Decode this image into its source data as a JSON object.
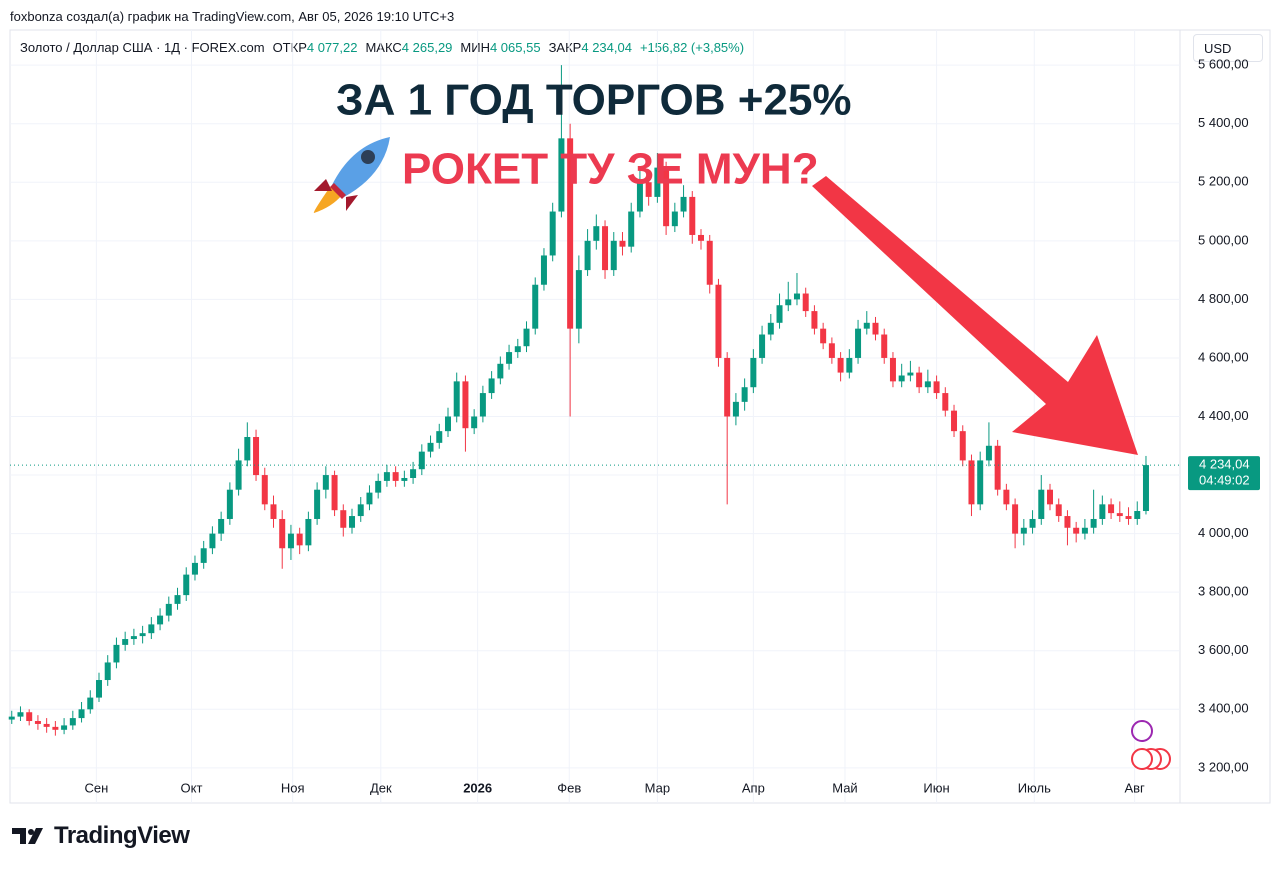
{
  "header": {
    "author_line": "foxbonza создал(а) график на TradingView.com, Авг 05, 2026 19:10 UTC+3",
    "symbol": "Золото / Доллар США · 1Д · FOREX.com",
    "ohlc_labels": [
      {
        "label": "ОТКР",
        "value": "4 077,22"
      },
      {
        "label": "МАКС",
        "value": "4 265,29"
      },
      {
        "label": "МИН",
        "value": "4 065,55"
      },
      {
        "label": "ЗАКР",
        "value": "4 234,04"
      }
    ],
    "change": "+156,82 (+3,85%)",
    "currency": "USD"
  },
  "footer": {
    "brand": "TradingView"
  },
  "chart_data": {
    "type": "candlestick",
    "title": "ЗА 1 ГОД ТОРГОВ +25%",
    "subtitle": "РОКЕТ ТУ ЗЕ МУН?",
    "up_color": "#089981",
    "down_color": "#f23645",
    "xlim": [
      -0.2,
      133.9
    ],
    "xticks": [
      {
        "value": 9.7,
        "label": "Сен"
      },
      {
        "value": 20.6,
        "label": "Окт"
      },
      {
        "value": 32.2,
        "label": "Ноя"
      },
      {
        "value": 42.3,
        "label": "Дек"
      },
      {
        "value": 53.4,
        "label": "2026"
      },
      {
        "value": 63.9,
        "label": "Фев"
      },
      {
        "value": 74,
        "label": "Мар"
      },
      {
        "value": 85,
        "label": "Апр"
      },
      {
        "value": 95.5,
        "label": "Май"
      },
      {
        "value": 106,
        "label": "Июн"
      },
      {
        "value": 117.2,
        "label": "Июль"
      },
      {
        "value": 128.7,
        "label": "Авг"
      }
    ],
    "ylim": [
      3080,
      5720
    ],
    "yticks": [
      {
        "value": 3200,
        "label": "3 200,00"
      },
      {
        "value": 3400,
        "label": "3 400,00"
      },
      {
        "value": 3600,
        "label": "3 600,00"
      },
      {
        "value": 3800,
        "label": "3 800,00"
      },
      {
        "value": 4000,
        "label": "4 000,00"
      },
      {
        "value": 4200,
        "label": "4 200,00"
      },
      {
        "value": 4400,
        "label": "4 400,00"
      },
      {
        "value": 4600,
        "label": "4 600,00"
      },
      {
        "value": 4800,
        "label": "4 800,00"
      },
      {
        "value": 5000,
        "label": "5 000,00"
      },
      {
        "value": 5200,
        "label": "5 200,00"
      },
      {
        "value": 5400,
        "label": "5 400,00"
      },
      {
        "value": 5600,
        "label": "5 600,00"
      }
    ],
    "grid": true,
    "last_price": {
      "value": 4234.04,
      "label": "4 234,04",
      "countdown": "04:49:02"
    },
    "ohlc": [
      [
        3365,
        3395,
        3350,
        3375
      ],
      [
        3375,
        3410,
        3360,
        3390
      ],
      [
        3390,
        3400,
        3345,
        3360
      ],
      [
        3360,
        3380,
        3330,
        3350
      ],
      [
        3350,
        3370,
        3320,
        3340
      ],
      [
        3340,
        3360,
        3310,
        3330
      ],
      [
        3330,
        3370,
        3315,
        3345
      ],
      [
        3345,
        3395,
        3330,
        3370
      ],
      [
        3370,
        3425,
        3355,
        3400
      ],
      [
        3400,
        3465,
        3385,
        3440
      ],
      [
        3440,
        3525,
        3425,
        3500
      ],
      [
        3500,
        3585,
        3480,
        3560
      ],
      [
        3560,
        3645,
        3540,
        3620
      ],
      [
        3620,
        3665,
        3600,
        3640
      ],
      [
        3640,
        3675,
        3620,
        3650
      ],
      [
        3650,
        3685,
        3625,
        3660
      ],
      [
        3660,
        3715,
        3640,
        3690
      ],
      [
        3690,
        3745,
        3670,
        3720
      ],
      [
        3720,
        3785,
        3700,
        3760
      ],
      [
        3760,
        3815,
        3740,
        3790
      ],
      [
        3790,
        3885,
        3770,
        3860
      ],
      [
        3860,
        3925,
        3840,
        3900
      ],
      [
        3900,
        3975,
        3880,
        3950
      ],
      [
        3950,
        4025,
        3930,
        4000
      ],
      [
        4000,
        4075,
        3975,
        4050
      ],
      [
        4050,
        4175,
        4030,
        4150
      ],
      [
        4150,
        4290,
        4130,
        4250
      ],
      [
        4250,
        4380,
        4230,
        4330
      ],
      [
        4330,
        4355,
        4180,
        4200
      ],
      [
        4200,
        4225,
        4080,
        4100
      ],
      [
        4100,
        4130,
        4020,
        4050
      ],
      [
        4050,
        4080,
        3880,
        3950
      ],
      [
        3950,
        4030,
        3910,
        4000
      ],
      [
        4000,
        4020,
        3930,
        3960
      ],
      [
        3960,
        4075,
        3940,
        4050
      ],
      [
        4050,
        4175,
        4030,
        4150
      ],
      [
        4150,
        4230,
        4120,
        4200
      ],
      [
        4200,
        4215,
        4060,
        4080
      ],
      [
        4080,
        4100,
        3990,
        4020
      ],
      [
        4020,
        4085,
        4000,
        4060
      ],
      [
        4060,
        4125,
        4040,
        4100
      ],
      [
        4100,
        4165,
        4080,
        4140
      ],
      [
        4140,
        4205,
        4120,
        4180
      ],
      [
        4180,
        4235,
        4160,
        4210
      ],
      [
        4210,
        4230,
        4160,
        4180
      ],
      [
        4180,
        4215,
        4160,
        4190
      ],
      [
        4190,
        4245,
        4170,
        4220
      ],
      [
        4220,
        4305,
        4200,
        4280
      ],
      [
        4280,
        4335,
        4260,
        4310
      ],
      [
        4310,
        4375,
        4290,
        4350
      ],
      [
        4350,
        4430,
        4330,
        4400
      ],
      [
        4400,
        4550,
        4380,
        4520
      ],
      [
        4520,
        4540,
        4280,
        4360
      ],
      [
        4360,
        4425,
        4340,
        4400
      ],
      [
        4400,
        4505,
        4380,
        4480
      ],
      [
        4480,
        4555,
        4460,
        4530
      ],
      [
        4530,
        4605,
        4510,
        4580
      ],
      [
        4580,
        4645,
        4560,
        4620
      ],
      [
        4620,
        4665,
        4600,
        4640
      ],
      [
        4640,
        4725,
        4620,
        4700
      ],
      [
        4700,
        4875,
        4680,
        4850
      ],
      [
        4850,
        4975,
        4830,
        4950
      ],
      [
        4950,
        5130,
        4930,
        5100
      ],
      [
        5100,
        5600,
        5080,
        5350
      ],
      [
        5350,
        5400,
        4400,
        4700
      ],
      [
        4700,
        4950,
        4650,
        4900
      ],
      [
        4900,
        5040,
        4880,
        5000
      ],
      [
        5000,
        5090,
        4970,
        5050
      ],
      [
        5050,
        5070,
        4870,
        4900
      ],
      [
        4900,
        5030,
        4880,
        5000
      ],
      [
        5000,
        5030,
        4950,
        4980
      ],
      [
        4980,
        5130,
        4960,
        5100
      ],
      [
        5100,
        5240,
        5080,
        5200
      ],
      [
        5200,
        5230,
        5120,
        5150
      ],
      [
        5150,
        5300,
        5130,
        5250
      ],
      [
        5250,
        5270,
        5020,
        5050
      ],
      [
        5050,
        5130,
        5030,
        5100
      ],
      [
        5100,
        5190,
        5080,
        5150
      ],
      [
        5150,
        5170,
        4990,
        5020
      ],
      [
        5020,
        5040,
        4970,
        5000
      ],
      [
        5000,
        5020,
        4820,
        4850
      ],
      [
        4850,
        4870,
        4570,
        4600
      ],
      [
        4600,
        4620,
        4100,
        4400
      ],
      [
        4400,
        4480,
        4370,
        4450
      ],
      [
        4450,
        4530,
        4420,
        4500
      ],
      [
        4500,
        4630,
        4480,
        4600
      ],
      [
        4600,
        4710,
        4580,
        4680
      ],
      [
        4680,
        4750,
        4660,
        4720
      ],
      [
        4720,
        4820,
        4700,
        4780
      ],
      [
        4780,
        4860,
        4760,
        4800
      ],
      [
        4800,
        4890,
        4780,
        4820
      ],
      [
        4820,
        4840,
        4740,
        4760
      ],
      [
        4760,
        4780,
        4680,
        4700
      ],
      [
        4700,
        4720,
        4630,
        4650
      ],
      [
        4650,
        4670,
        4580,
        4600
      ],
      [
        4600,
        4620,
        4520,
        4550
      ],
      [
        4550,
        4630,
        4530,
        4600
      ],
      [
        4600,
        4730,
        4580,
        4700
      ],
      [
        4700,
        4760,
        4680,
        4720
      ],
      [
        4720,
        4740,
        4660,
        4680
      ],
      [
        4680,
        4700,
        4580,
        4600
      ],
      [
        4600,
        4620,
        4500,
        4520
      ],
      [
        4520,
        4580,
        4500,
        4540
      ],
      [
        4540,
        4590,
        4520,
        4550
      ],
      [
        4550,
        4570,
        4480,
        4500
      ],
      [
        4500,
        4560,
        4480,
        4520
      ],
      [
        4520,
        4540,
        4460,
        4480
      ],
      [
        4480,
        4500,
        4400,
        4420
      ],
      [
        4420,
        4440,
        4330,
        4350
      ],
      [
        4350,
        4370,
        4230,
        4250
      ],
      [
        4250,
        4270,
        4060,
        4100
      ],
      [
        4100,
        4280,
        4080,
        4250
      ],
      [
        4250,
        4380,
        4230,
        4300
      ],
      [
        4300,
        4320,
        4130,
        4150
      ],
      [
        4150,
        4170,
        4080,
        4100
      ],
      [
        4100,
        4120,
        3950,
        4000
      ],
      [
        4000,
        4050,
        3960,
        4020
      ],
      [
        4020,
        4080,
        4000,
        4050
      ],
      [
        4050,
        4200,
        4030,
        4150
      ],
      [
        4150,
        4170,
        4080,
        4100
      ],
      [
        4100,
        4120,
        4040,
        4060
      ],
      [
        4060,
        4080,
        3960,
        4020
      ],
      [
        4020,
        4040,
        3970,
        4000
      ],
      [
        4000,
        4050,
        3980,
        4020
      ],
      [
        4020,
        4150,
        4000,
        4050
      ],
      [
        4050,
        4130,
        4030,
        4100
      ],
      [
        4100,
        4120,
        4050,
        4070
      ],
      [
        4070,
        4110,
        4040,
        4060
      ],
      [
        4060,
        4090,
        4030,
        4050
      ],
      [
        4050,
        4110,
        4030,
        4077.22
      ],
      [
        4077.22,
        4265.29,
        4065.55,
        4234.04
      ]
    ]
  }
}
